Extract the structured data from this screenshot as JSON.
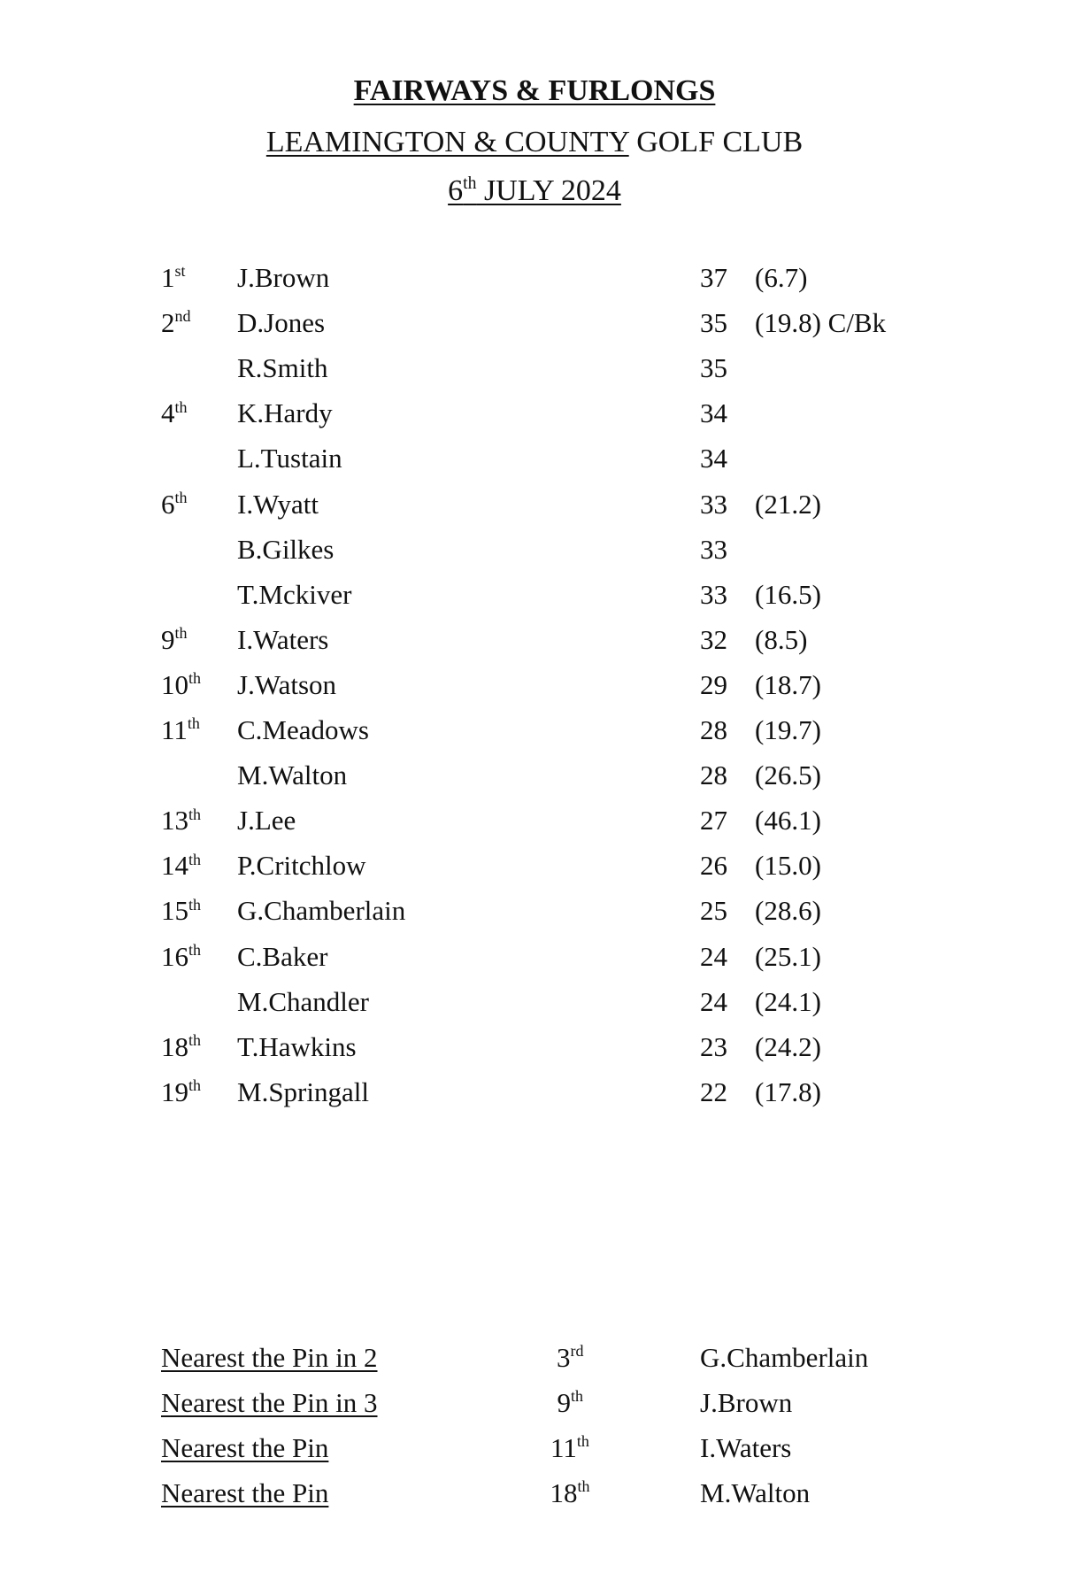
{
  "header": {
    "title": "FAIRWAYS & FURLONGS",
    "venue_underlined": "LEAMINGTON & COUNTY",
    "venue_rest": " GOLF CLUB",
    "date_day": "6",
    "date_suffix": "th",
    "date_rest": " JULY 2024"
  },
  "results": [
    {
      "pos": "1",
      "suffix": "st",
      "name": "J.Brown",
      "score": "37",
      "handicap": "(6.7)"
    },
    {
      "pos": "2",
      "suffix": "nd",
      "name": "D.Jones",
      "score": "35",
      "handicap": "(19.8) C/Bk"
    },
    {
      "pos": "",
      "suffix": "",
      "name": "R.Smith",
      "score": "35",
      "handicap": ""
    },
    {
      "pos": "4",
      "suffix": "th",
      "name": "K.Hardy",
      "score": "34",
      "handicap": ""
    },
    {
      "pos": "",
      "suffix": "",
      "name": "L.Tustain",
      "score": "34",
      "handicap": ""
    },
    {
      "pos": "6",
      "suffix": "th",
      "name": "I.Wyatt",
      "score": "33",
      "handicap": "(21.2)"
    },
    {
      "pos": "",
      "suffix": "",
      "name": "B.Gilkes",
      "score": "33",
      "handicap": ""
    },
    {
      "pos": "",
      "suffix": "",
      "name": "T.Mckiver",
      "score": "33",
      "handicap": "(16.5)"
    },
    {
      "pos": "9",
      "suffix": "th",
      "name": "I.Waters",
      "score": "32",
      "handicap": "(8.5)"
    },
    {
      "pos": "10",
      "suffix": "th",
      "name": "J.Watson",
      "score": "29",
      "handicap": "(18.7)"
    },
    {
      "pos": "11",
      "suffix": "th",
      "name": "C.Meadows",
      "score": "28",
      "handicap": "(19.7)"
    },
    {
      "pos": "",
      "suffix": "",
      "name": "M.Walton",
      "score": "28",
      "handicap": "(26.5)"
    },
    {
      "pos": "13",
      "suffix": "th",
      "name": "J.Lee",
      "score": "27",
      "handicap": "(46.1)"
    },
    {
      "pos": "14",
      "suffix": "th",
      "name": "P.Critchlow",
      "score": "26",
      "handicap": "(15.0)"
    },
    {
      "pos": "15",
      "suffix": "th",
      "name": "G.Chamberlain",
      "score": "25",
      "handicap": "(28.6)"
    },
    {
      "pos": "16",
      "suffix": "th",
      "name": "C.Baker",
      "score": "24",
      "handicap": "(25.1)"
    },
    {
      "pos": "",
      "suffix": "",
      "name": "M.Chandler",
      "score": "24",
      "handicap": "(24.1)"
    },
    {
      "pos": "18",
      "suffix": "th",
      "name": "T.Hawkins",
      "score": "23",
      "handicap": "(24.2)"
    },
    {
      "pos": "19",
      "suffix": "th",
      "name": "M.Springall",
      "score": "22",
      "handicap": "(17.8)"
    }
  ],
  "prizes": [
    {
      "label": "Nearest the Pin in 2",
      "hole": "3",
      "suffix": "rd",
      "winner": "G.Chamberlain"
    },
    {
      "label": "Nearest the Pin in 3",
      "hole": "9",
      "suffix": "th",
      "winner": "J.Brown"
    },
    {
      "label": "Nearest the Pin",
      "hole": "11",
      "suffix": "th",
      "winner": "I.Waters"
    },
    {
      "label": "Nearest the Pin",
      "hole": "18",
      "suffix": "th",
      "winner": "M.Walton"
    }
  ]
}
